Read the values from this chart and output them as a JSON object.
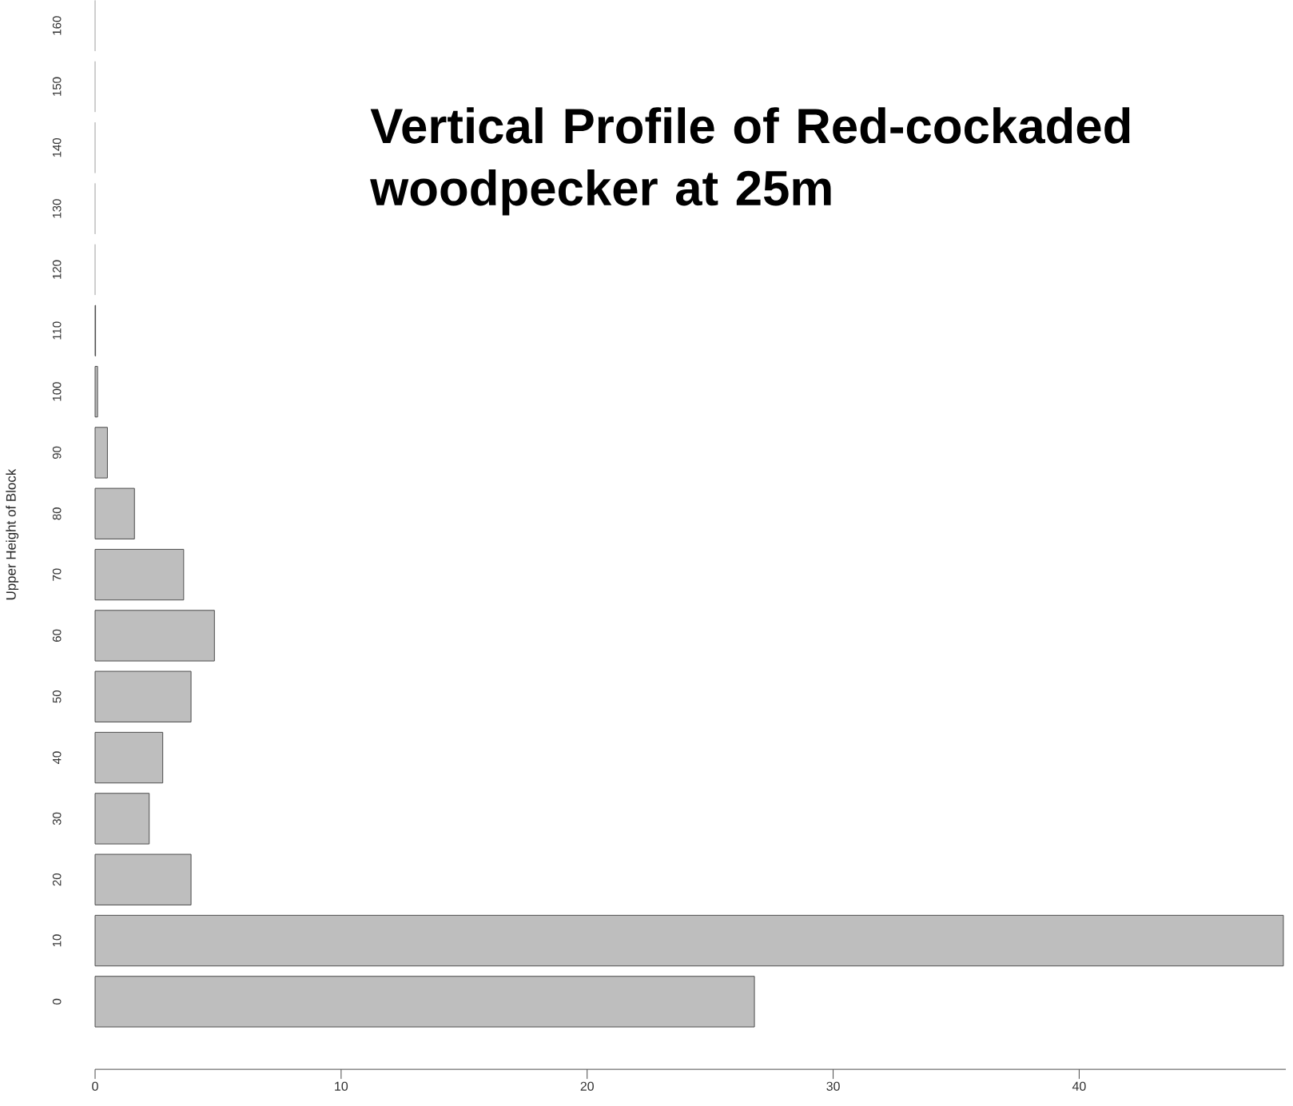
{
  "chart_data": {
    "type": "bar",
    "orientation": "horizontal",
    "title": "Vertical Profile of Red-cockaded woodpecker at 25m",
    "ylabel": "Upper Height of Block",
    "categories": [
      "160",
      "150",
      "140",
      "130",
      "120",
      "110",
      "100",
      "90",
      "80",
      "70",
      "60",
      "50",
      "40",
      "30",
      "20",
      "10",
      "0"
    ],
    "values": [
      0,
      0,
      0,
      0,
      0,
      0.02,
      0.1,
      0.5,
      1.6,
      3.6,
      4.85,
      3.9,
      2.75,
      2.2,
      3.9,
      48.3,
      26.8
    ],
    "color": "#bebebe",
    "xlim": [
      0,
      48.4
    ],
    "xticks": [
      0,
      10,
      20,
      30,
      40
    ]
  }
}
